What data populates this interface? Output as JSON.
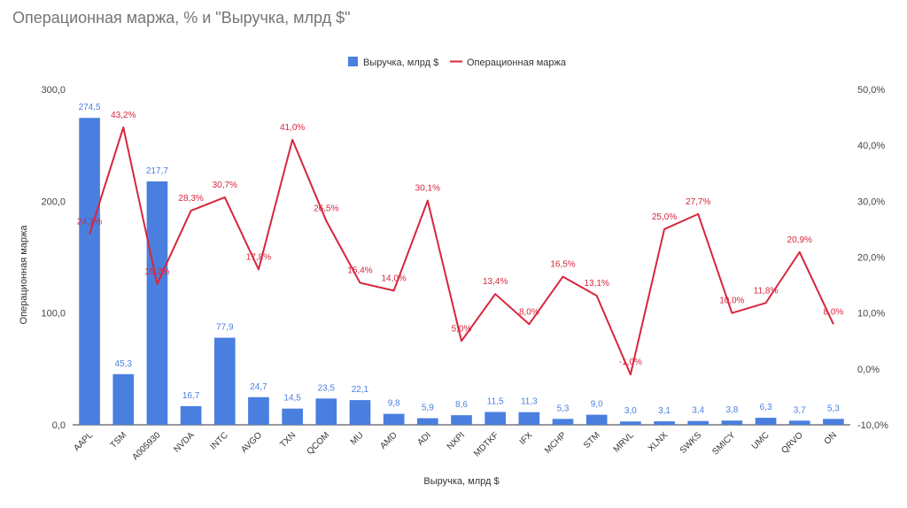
{
  "chart_data": {
    "type": "bar",
    "title": "Операционная маржа, % и \"Выручка, млрд $\"",
    "xlabel": "Выручка, млрд $",
    "ylabel": "Операционная маржа",
    "categories": [
      "AAPL",
      "TSM",
      "A005930",
      "NVDA",
      "INTC",
      "AVGO",
      "TXN",
      "QCOM",
      "MU",
      "AMD",
      "ADI",
      "NXPI",
      "MDTKF",
      "IFX",
      "MCHP",
      "STM",
      "MRVL",
      "XLNX",
      "SWKS",
      "SMICY",
      "UMC",
      "QRVO",
      "ON"
    ],
    "series": [
      {
        "name": "Выручка, млрд $",
        "type": "bar",
        "axis": "left",
        "color": "#4a7fe0",
        "values": [
          274.5,
          45.3,
          217.7,
          16.7,
          77.9,
          24.7,
          14.5,
          23.5,
          22.1,
          9.8,
          5.9,
          8.6,
          11.5,
          11.3,
          5.3,
          9.0,
          3.0,
          3.1,
          3.4,
          3.8,
          6.3,
          3.7,
          5.3
        ],
        "labels": [
          "274,5",
          "45,3",
          "217,7",
          "16,7",
          "77,9",
          "24,7",
          "14,5",
          "23,5",
          "22,1",
          "9,8",
          "5,9",
          "8,6",
          "11,5",
          "11,3",
          "5,3",
          "9,0",
          "3,0",
          "3,1",
          "3,4",
          "3,8",
          "6,3",
          "3,7",
          "5,3"
        ]
      },
      {
        "name": "Операционная маржа",
        "type": "line",
        "axis": "right",
        "color": "#d7263d",
        "values": [
          24.1,
          43.2,
          15.2,
          28.3,
          30.7,
          17.8,
          41.0,
          26.5,
          15.4,
          14.0,
          30.1,
          5.0,
          13.4,
          8.0,
          16.5,
          13.1,
          -1.0,
          25.0,
          27.7,
          10.0,
          11.8,
          20.9,
          8.0
        ],
        "labels": [
          "24,1%",
          "43,2%",
          "15,2%",
          "28,3%",
          "30,7%",
          "17,8%",
          "41,0%",
          "26,5%",
          "15,4%",
          "14,0%",
          "30,1%",
          "5,0%",
          "13,4%",
          "8,0%",
          "16,5%",
          "13,1%",
          "-1,0%",
          "25,0%",
          "27,7%",
          "10,0%",
          "11,8%",
          "20,9%",
          "8,0%"
        ]
      }
    ],
    "y_left": {
      "min": 0,
      "max": 300,
      "ticks": [
        0,
        100,
        200,
        300
      ],
      "tick_labels": [
        "0,0",
        "100,0",
        "200,0",
        "300,0"
      ]
    },
    "y_right": {
      "min": -10,
      "max": 50,
      "ticks": [
        -10,
        0,
        10,
        20,
        30,
        40,
        50
      ],
      "tick_labels": [
        "-10,0%",
        "0,0%",
        "10,0%",
        "20,0%",
        "30,0%",
        "40,0%",
        "50,0%"
      ]
    },
    "legend_position": "top",
    "grid": false
  }
}
